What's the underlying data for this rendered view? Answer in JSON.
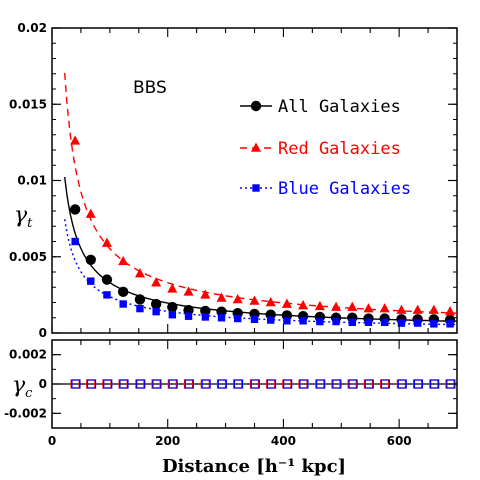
{
  "chart_data": [
    {
      "type": "line",
      "panel_label": "BBS",
      "ylabel": {
        "symbol": "γ",
        "subscript": "t"
      },
      "xlim": [
        0,
        700
      ],
      "ylim": [
        0,
        0.02
      ],
      "y_ticks": [
        0,
        0.005,
        0.01,
        0.015,
        0.02
      ],
      "y_tick_labels": [
        "0",
        "0.005",
        "0.01",
        "0.015",
        "0.02"
      ],
      "legend_position": "top-right",
      "series": [
        {
          "name": "All Galaxies",
          "color": "#000000",
          "marker": "circle",
          "line_style": "solid",
          "x": [
            40,
            67,
            95,
            123,
            152,
            180,
            208,
            236,
            265,
            293,
            321,
            350,
            378,
            406,
            434,
            463,
            491,
            519,
            547,
            575,
            604,
            632,
            660,
            688
          ],
          "y": [
            0.0081,
            0.0048,
            0.0035,
            0.0027,
            0.0022,
            0.0019,
            0.0017,
            0.0015,
            0.00145,
            0.0014,
            0.0013,
            0.00125,
            0.0012,
            0.00115,
            0.0011,
            0.00105,
            0.001,
            0.001,
            0.00095,
            0.00095,
            0.0009,
            0.0009,
            0.0009,
            0.00085
          ]
        },
        {
          "name": "Red Galaxies",
          "color": "#ff0000",
          "marker": "triangle",
          "line_style": "dashed",
          "x": [
            40,
            67,
            95,
            123,
            152,
            180,
            208,
            236,
            265,
            293,
            321,
            350,
            378,
            406,
            434,
            463,
            491,
            519,
            547,
            575,
            604,
            632,
            660,
            688
          ],
          "y": [
            0.0126,
            0.0078,
            0.0059,
            0.0047,
            0.0039,
            0.0033,
            0.0029,
            0.0027,
            0.0025,
            0.0023,
            0.0022,
            0.0021,
            0.002,
            0.0019,
            0.0018,
            0.00175,
            0.0017,
            0.0017,
            0.0016,
            0.0016,
            0.0015,
            0.0015,
            0.0015,
            0.0014
          ]
        },
        {
          "name": "Blue Galaxies",
          "color": "#0000ff",
          "marker": "square",
          "line_style": "dotted",
          "x": [
            40,
            67,
            95,
            123,
            152,
            180,
            208,
            236,
            265,
            293,
            321,
            350,
            378,
            406,
            434,
            463,
            491,
            519,
            547,
            575,
            604,
            632,
            660,
            688
          ],
          "y": [
            0.006,
            0.0034,
            0.0025,
            0.0019,
            0.0016,
            0.0014,
            0.0012,
            0.0011,
            0.00105,
            0.001,
            0.00095,
            0.0009,
            0.00085,
            0.0008,
            0.0008,
            0.00075,
            0.00075,
            0.0007,
            0.0007,
            0.0007,
            0.00065,
            0.00065,
            0.0006,
            0.0006
          ]
        }
      ]
    },
    {
      "type": "scatter",
      "ylabel": {
        "symbol": "γ",
        "subscript": "c"
      },
      "xlabel": "Distance [h⁻¹ kpc]",
      "xlim": [
        0,
        700
      ],
      "ylim": [
        -0.003,
        0.003
      ],
      "x_ticks": [
        0,
        200,
        400,
        600
      ],
      "x_tick_labels": [
        "0",
        "200",
        "400",
        "600"
      ],
      "y_ticks": [
        -0.002,
        0,
        0.002
      ],
      "y_tick_labels": [
        "-0.002",
        "0",
        "0.002"
      ],
      "reference_line_y": 0,
      "series": [
        {
          "color": "#ff0000",
          "marker": "open-square",
          "x": [
            40,
            67,
            95,
            123,
            152,
            180,
            208,
            236,
            265,
            293,
            321,
            350,
            378,
            406,
            434,
            463,
            491,
            519,
            547,
            575,
            604,
            632,
            660,
            688
          ],
          "y": [
            0,
            0,
            0,
            0,
            0,
            0,
            0,
            0,
            0,
            0,
            0,
            0,
            0,
            0,
            0,
            0,
            0,
            0,
            0,
            0,
            0,
            0,
            0,
            0
          ]
        },
        {
          "color": "#0000ff",
          "marker": "open-square",
          "x": [
            40,
            67,
            95,
            123,
            152,
            180,
            208,
            236,
            265,
            293,
            321,
            350,
            378,
            406,
            434,
            463,
            491,
            519,
            547,
            575,
            604,
            632,
            660,
            688
          ],
          "y": [
            0,
            0,
            0,
            0,
            0,
            0,
            0,
            0,
            0,
            0,
            0,
            0,
            0,
            0,
            0,
            0,
            0,
            0,
            0,
            0,
            0,
            0,
            0,
            0
          ]
        }
      ]
    }
  ]
}
